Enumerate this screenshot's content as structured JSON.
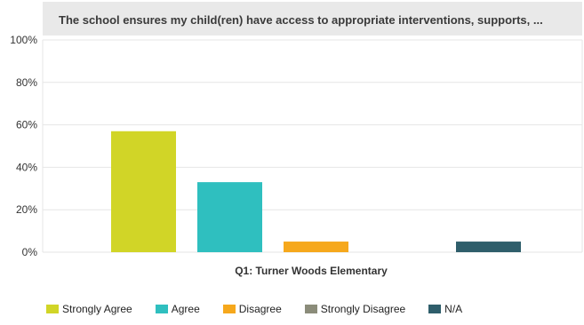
{
  "chart_data": {
    "type": "bar",
    "title": "The school ensures my child(ren) have access to appropriate interventions, supports, ...",
    "category_label": "Q1: Turner Woods Elementary",
    "yticks": [
      "0%",
      "20%",
      "40%",
      "60%",
      "80%",
      "100%"
    ],
    "ylim": [
      0,
      100
    ],
    "grid": true,
    "legend_position": "bottom",
    "series": [
      {
        "name": "Strongly Agree",
        "value": 57,
        "color": "#d1d527"
      },
      {
        "name": "Agree",
        "value": 33,
        "color": "#2fbfbf"
      },
      {
        "name": "Disagree",
        "value": 5,
        "color": "#f6a81c"
      },
      {
        "name": "Strongly Disagree",
        "value": 0,
        "color": "#8b8c7a"
      },
      {
        "name": "N/A",
        "value": 5,
        "color": "#2f5e6b"
      }
    ]
  }
}
